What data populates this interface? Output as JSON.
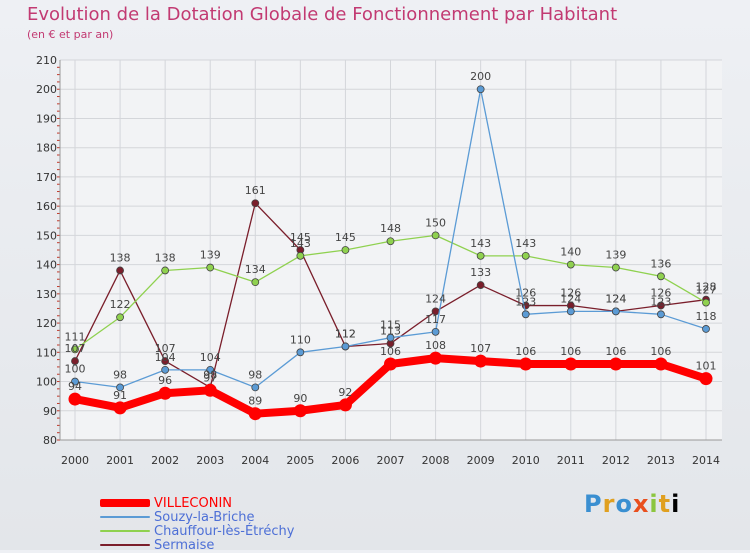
{
  "title": "Evolution de la Dotation Globale de Fonctionnement par Habitant",
  "subtitle": "(en € et par an)",
  "logo": [
    "P",
    "r",
    "o",
    "x",
    "i",
    "t",
    "i"
  ],
  "chart_data": {
    "type": "line",
    "x": [
      "2000",
      "2001",
      "2002",
      "2003",
      "2004",
      "2005",
      "2006",
      "2007",
      "2008",
      "2009",
      "2010",
      "2011",
      "2012",
      "2013",
      "2014"
    ],
    "ylim": [
      80,
      210
    ],
    "yticks": [
      80,
      90,
      100,
      110,
      120,
      130,
      140,
      150,
      160,
      170,
      180,
      190,
      200,
      210
    ],
    "grid": true,
    "legend_position": "bottom-left",
    "series": [
      {
        "name": "VILLECONIN",
        "color": "#ff0000",
        "values": [
          94,
          91,
          96,
          97,
          89,
          90,
          92,
          106,
          108,
          107,
          106,
          106,
          106,
          106,
          101
        ]
      },
      {
        "name": "Souzy-la-Briche",
        "color": "#5b9bd5",
        "values": [
          100,
          98,
          104,
          104,
          98,
          110,
          112,
          115,
          117,
          200,
          123,
          124,
          124,
          123,
          118
        ]
      },
      {
        "name": "Chauffour-lès-Étréchy",
        "color": "#8fd14f",
        "values": [
          111,
          122,
          138,
          139,
          134,
          143,
          145,
          148,
          150,
          143,
          143,
          140,
          139,
          136,
          127
        ]
      },
      {
        "name": "Sermaise",
        "color": "#7a1e2b",
        "values": [
          107,
          138,
          107,
          98,
          161,
          145,
          112,
          113,
          124,
          133,
          126,
          126,
          124,
          126,
          128
        ]
      }
    ]
  }
}
